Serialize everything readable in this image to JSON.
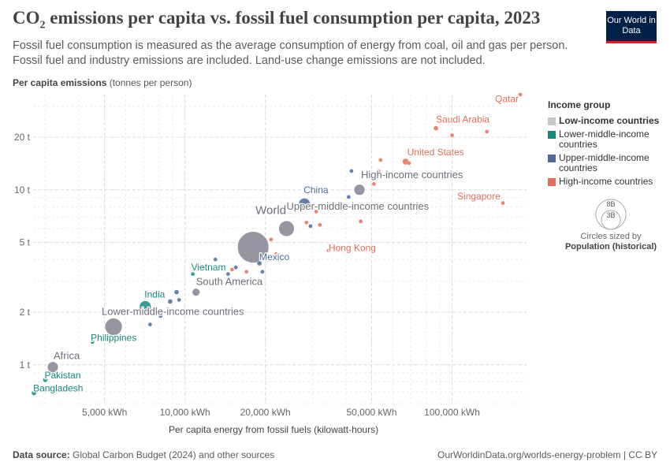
{
  "header": {
    "title_main": "CO",
    "title_sub": "2",
    "title_rest": " emissions per capita vs. fossil fuel consumption per capita, 2023",
    "subtitle": "Fossil fuel consumption is measured as the average consumption of energy from coal, oil and gas per person. Fossil fuel and industry emissions are included. Land-use change emissions are not included.",
    "logo": "Our World in Data"
  },
  "axes": {
    "y_label_bold": "Per capita emissions",
    "y_label_unit": " (tonnes per person)",
    "x_label": "Per capita energy from fossil fuels (kilowatt-hours)"
  },
  "legend": {
    "title": "Income group",
    "items": [
      {
        "label": "Low-income countries",
        "color": "#c7c7c7"
      },
      {
        "label": "Lower-middle-income countries",
        "color": "#17877d"
      },
      {
        "label": "Upper-middle-income countries",
        "color": "#4c6a9c"
      },
      {
        "label": "High-income countries",
        "color": "#e56e5a"
      }
    ],
    "size_big": "8B",
    "size_small": "3B",
    "size_caption": "Circles sized by",
    "size_caption_bold": "Population (historical)"
  },
  "footer": {
    "source_bold": "Data source:",
    "source": " Global Carbon Budget (2024) and other sources",
    "url": "OurWorldinData.org/worlds-energy-problem | CC BY"
  },
  "chart_data": {
    "type": "scatter",
    "x_scale": "log",
    "y_scale": "log",
    "xlim": [
      2700,
      190000
    ],
    "ylim": [
      0.6,
      35
    ],
    "x_ticks": [
      {
        "v": 5000,
        "label": "5,000 kWh"
      },
      {
        "v": 10000,
        "label": "10,000 kWh"
      },
      {
        "v": 20000,
        "label": "20,000 kWh"
      },
      {
        "v": 50000,
        "label": "50,000 kWh"
      },
      {
        "v": 100000,
        "label": "100,000 kWh"
      }
    ],
    "y_ticks": [
      {
        "v": 1,
        "label": "1 t"
      },
      {
        "v": 2,
        "label": "2 t"
      },
      {
        "v": 5,
        "label": "5 t"
      },
      {
        "v": 10,
        "label": "10 t"
      },
      {
        "v": 20,
        "label": "20 t"
      }
    ],
    "grid": true,
    "legend_position": "right",
    "points": [
      {
        "label": "Qatar",
        "x": 180000,
        "y": 35,
        "r": 2.5,
        "color": "#e56e5a",
        "lx": -32,
        "ly": 12
      },
      {
        "label": "Saudi Arabia",
        "x": 87000,
        "y": 22.5,
        "r": 3,
        "color": "#e56e5a",
        "lx": 0,
        "ly": -4
      },
      {
        "label": "",
        "x": 100000,
        "y": 20.5,
        "r": 2.5,
        "color": "#e56e5a"
      },
      {
        "label": "",
        "x": 135000,
        "y": 21.5,
        "r": 2.5,
        "color": "#e56e5a"
      },
      {
        "label": "United States",
        "x": 67000,
        "y": 14.5,
        "r": 4,
        "color": "#e56e5a",
        "lx": 2,
        "ly": -4
      },
      {
        "label": "",
        "x": 69000,
        "y": 14.2,
        "r": 2.5,
        "color": "#e56e5a"
      },
      {
        "label": "",
        "x": 54000,
        "y": 14.8,
        "r": 2.5,
        "color": "#e56e5a"
      },
      {
        "label": "",
        "x": 53000,
        "y": 12.8,
        "r": 2.5,
        "color": "#e56e5a"
      },
      {
        "label": "",
        "x": 42000,
        "y": 12.8,
        "r": 2.5,
        "color": "#4c6a9c"
      },
      {
        "label": "High-income countries",
        "x": 45000,
        "y": 10,
        "r": 7,
        "color": "#848391",
        "lx": 2,
        "ly": -8
      },
      {
        "label": "",
        "x": 51000,
        "y": 10.8,
        "r": 2.5,
        "color": "#e56e5a"
      },
      {
        "label": "Singapore",
        "x": 155000,
        "y": 8.4,
        "r": 2.5,
        "color": "#e56e5a",
        "lx": -58,
        "ly": -2
      },
      {
        "label": "China",
        "x": 28000,
        "y": 8.3,
        "r": 7.5,
        "color": "#4c6a9c",
        "lx": -1,
        "ly": -6
      },
      {
        "label": "",
        "x": 37000,
        "y": 8.2,
        "r": 2.5,
        "color": "#e56e5a"
      },
      {
        "label": "",
        "x": 34000,
        "y": 7.9,
        "r": 2.5,
        "color": "#e56e5a"
      },
      {
        "label": "",
        "x": 41000,
        "y": 9.1,
        "r": 2.5,
        "color": "#4c6a9c"
      },
      {
        "label": "",
        "x": 31000,
        "y": 7.5,
        "r": 2.5,
        "color": "#e56e5a"
      },
      {
        "label": "",
        "x": 45500,
        "y": 6.6,
        "r": 2.5,
        "color": "#e56e5a"
      },
      {
        "label": "Upper-middle-income countries",
        "x": 24000,
        "y": 6.0,
        "r": 10,
        "color": "#848391",
        "lx": 0,
        "ly": -14
      },
      {
        "label": "",
        "x": 28500,
        "y": 6.5,
        "r": 2.5,
        "color": "#e56e5a"
      },
      {
        "label": "",
        "x": 29500,
        "y": 6.2,
        "r": 2.5,
        "color": "#4c6a9c"
      },
      {
        "label": "",
        "x": 32000,
        "y": 6.3,
        "r": 2.5,
        "color": "#e56e5a"
      },
      {
        "label": "World",
        "x": 18000,
        "y": 4.7,
        "r": 20,
        "color": "#848391",
        "lx": 3,
        "ly": -22
      },
      {
        "label": "Hong Kong",
        "x": 34500,
        "y": 4.5,
        "r": 2.5,
        "color": "#e56e5a",
        "lx": 0,
        "ly": 3
      },
      {
        "label": "Mexico",
        "x": 19000,
        "y": 3.8,
        "r": 3,
        "color": "#4c6a9c",
        "lx": 0,
        "ly": -1
      },
      {
        "label": "",
        "x": 21000,
        "y": 5.2,
        "r": 2.5,
        "color": "#e56e5a"
      },
      {
        "label": "",
        "x": 22000,
        "y": 4.3,
        "r": 2.5,
        "color": "#e56e5a"
      },
      {
        "label": "",
        "x": 15500,
        "y": 3.6,
        "r": 2.5,
        "color": "#4c6a9c"
      },
      {
        "label": "",
        "x": 17000,
        "y": 3.4,
        "r": 2.5,
        "color": "#e56e5a"
      },
      {
        "label": "",
        "x": 19500,
        "y": 3.4,
        "r": 2.5,
        "color": "#4c6a9c"
      },
      {
        "label": "",
        "x": 13000,
        "y": 4.0,
        "r": 2.5,
        "color": "#4c6a9c"
      },
      {
        "label": "",
        "x": 15000,
        "y": 3.5,
        "r": 2.5,
        "color": "#e56e5a"
      },
      {
        "label": "Vietnam",
        "x": 10700,
        "y": 3.3,
        "r": 2.5,
        "color": "#17877d",
        "lx": -2,
        "ly": -2
      },
      {
        "label": "",
        "x": 14500,
        "y": 3.3,
        "r": 2.5,
        "color": "#4c6a9c"
      },
      {
        "label": "South America",
        "x": 11000,
        "y": 2.6,
        "r": 5,
        "color": "#848391",
        "lx": 0,
        "ly": -4
      },
      {
        "label": "",
        "x": 9300,
        "y": 2.6,
        "r": 3,
        "color": "#4c6a9c"
      },
      {
        "label": "",
        "x": 9500,
        "y": 2.35,
        "r": 2.5,
        "color": "#4c6a9c"
      },
      {
        "label": "",
        "x": 8800,
        "y": 2.3,
        "r": 3,
        "color": "#4c6a9c"
      },
      {
        "label": "India",
        "x": 7100,
        "y": 2.15,
        "r": 7.5,
        "color": "#17877d",
        "lx": -1,
        "ly": -4
      },
      {
        "label": "",
        "x": 8100,
        "y": 1.9,
        "r": 2.5,
        "color": "#4c6a9c"
      },
      {
        "label": "",
        "x": 7400,
        "y": 1.7,
        "r": 2.5,
        "color": "#4c6a9c"
      },
      {
        "label": "Lower-middle-income countries",
        "x": 5400,
        "y": 1.65,
        "r": 11,
        "color": "#848391",
        "lx": -15,
        "ly": -4
      },
      {
        "label": "Philippines",
        "x": 4500,
        "y": 1.35,
        "r": 2.5,
        "color": "#17877d",
        "lx": -2,
        "ly": 1
      },
      {
        "label": "Africa",
        "x": 3200,
        "y": 0.97,
        "r": 7,
        "color": "#848391",
        "lx": 1,
        "ly": -3
      },
      {
        "label": "Pakistan",
        "x": 3000,
        "y": 0.82,
        "r": 3,
        "color": "#17877d",
        "lx": -1,
        "ly": 1
      },
      {
        "label": "Bangladesh",
        "x": 2720,
        "y": 0.69,
        "r": 3,
        "color": "#17877d",
        "lx": -1,
        "ly": 1
      }
    ]
  }
}
